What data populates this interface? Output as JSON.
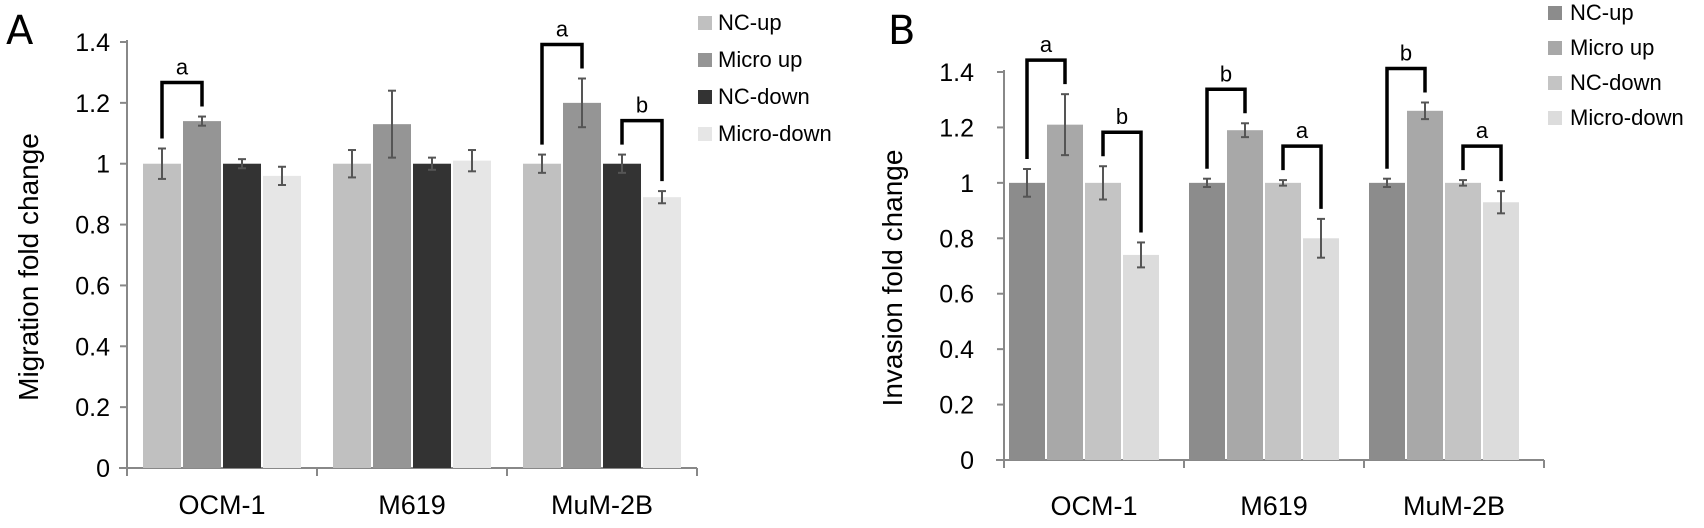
{
  "chart_data": [
    {
      "panel": "A",
      "type": "bar",
      "ylabel": "Migration fold change",
      "xlabel": "",
      "ylim": [
        0,
        1.4
      ],
      "yticks": [
        "0",
        "0.2",
        "0.4",
        "0.6",
        "0.8",
        "1",
        "1.2",
        "1.4"
      ],
      "categories": [
        "OCM-1",
        "M619",
        "MuM-2B"
      ],
      "legend_position": "top-right",
      "grid": false,
      "series": [
        {
          "name": "NC-up",
          "color": "#c0c0c0",
          "values": [
            1.0,
            1.0,
            1.0
          ],
          "errors": [
            0.05,
            0.045,
            0.03
          ]
        },
        {
          "name": "Micro up",
          "color": "#959595",
          "values": [
            1.14,
            1.13,
            1.2
          ],
          "errors": [
            0.015,
            0.11,
            0.08
          ]
        },
        {
          "name": "NC-down",
          "color": "#333333",
          "values": [
            1.0,
            1.0,
            1.0
          ],
          "errors": [
            0.015,
            0.02,
            0.03
          ]
        },
        {
          "name": "Micro-down",
          "color": "#e6e6e6",
          "values": [
            0.96,
            1.01,
            0.89
          ],
          "errors": [
            0.03,
            0.035,
            0.02
          ]
        }
      ],
      "significance": [
        {
          "label": "a",
          "category": 0,
          "from_series": 0,
          "to_series": 1
        },
        {
          "label": "a",
          "category": 2,
          "from_series": 0,
          "to_series": 1
        },
        {
          "label": "b",
          "category": 2,
          "from_series": 2,
          "to_series": 3
        }
      ]
    },
    {
      "panel": "B",
      "type": "bar",
      "ylabel": "Invasion fold change",
      "xlabel": "",
      "ylim": [
        0,
        1.4
      ],
      "yticks": [
        "0",
        "0.2",
        "0.4",
        "0.6",
        "0.8",
        "1",
        "1.2",
        "1.4"
      ],
      "categories": [
        "OCM-1",
        "M619",
        "MuM-2B"
      ],
      "legend_position": "top-right",
      "grid": false,
      "series": [
        {
          "name": "NC-up",
          "color": "#8c8c8c",
          "values": [
            1.0,
            1.0,
            1.0
          ],
          "errors": [
            0.05,
            0.015,
            0.015
          ]
        },
        {
          "name": "Micro up",
          "color": "#a8a8a8",
          "values": [
            1.21,
            1.19,
            1.26
          ],
          "errors": [
            0.11,
            0.025,
            0.03
          ]
        },
        {
          "name": "NC-down",
          "color": "#c4c4c4",
          "values": [
            1.0,
            1.0,
            1.0
          ],
          "errors": [
            0.06,
            0.01,
            0.01
          ]
        },
        {
          "name": "Micro-down",
          "color": "#dcdcdc",
          "values": [
            0.74,
            0.8,
            0.93
          ],
          "errors": [
            0.045,
            0.07,
            0.04
          ]
        }
      ],
      "significance": [
        {
          "label": "a",
          "category": 0,
          "from_series": 0,
          "to_series": 1
        },
        {
          "label": "b",
          "category": 0,
          "from_series": 2,
          "to_series": 3
        },
        {
          "label": "b",
          "category": 1,
          "from_series": 0,
          "to_series": 1
        },
        {
          "label": "a",
          "category": 1,
          "from_series": 2,
          "to_series": 3
        },
        {
          "label": "b",
          "category": 2,
          "from_series": 0,
          "to_series": 1
        },
        {
          "label": "a",
          "category": 2,
          "from_series": 2,
          "to_series": 3
        }
      ]
    }
  ]
}
